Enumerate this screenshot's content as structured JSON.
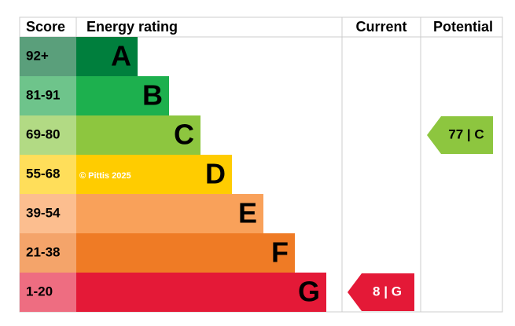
{
  "header": {
    "score": "Score",
    "rating": "Energy rating",
    "current": "Current",
    "potential": "Potential"
  },
  "bands": [
    {
      "score": "92+",
      "letter": "A",
      "color": "#007f3d",
      "score_color": "#5a9f7b"
    },
    {
      "score": "81-91",
      "letter": "B",
      "color": "#1db04e",
      "score_color": "#6ec48b"
    },
    {
      "score": "69-80",
      "letter": "C",
      "color": "#8dc63f",
      "score_color": "#b2da84"
    },
    {
      "score": "55-68",
      "letter": "D",
      "color": "#ffcc00",
      "score_color": "#ffde5a"
    },
    {
      "score": "39-54",
      "letter": "E",
      "color": "#f9a15a",
      "score_color": "#fcbe8f"
    },
    {
      "score": "21-38",
      "letter": "F",
      "color": "#ef7b25",
      "score_color": "#f4a46a"
    },
    {
      "score": "1-20",
      "letter": "G",
      "color": "#e41937",
      "score_color": "#ee6d81"
    }
  ],
  "current": {
    "label": "8 | G",
    "band": 6
  },
  "potential": {
    "label": "77 | C",
    "band": 2
  },
  "watermark": "© Pittis 2025"
}
